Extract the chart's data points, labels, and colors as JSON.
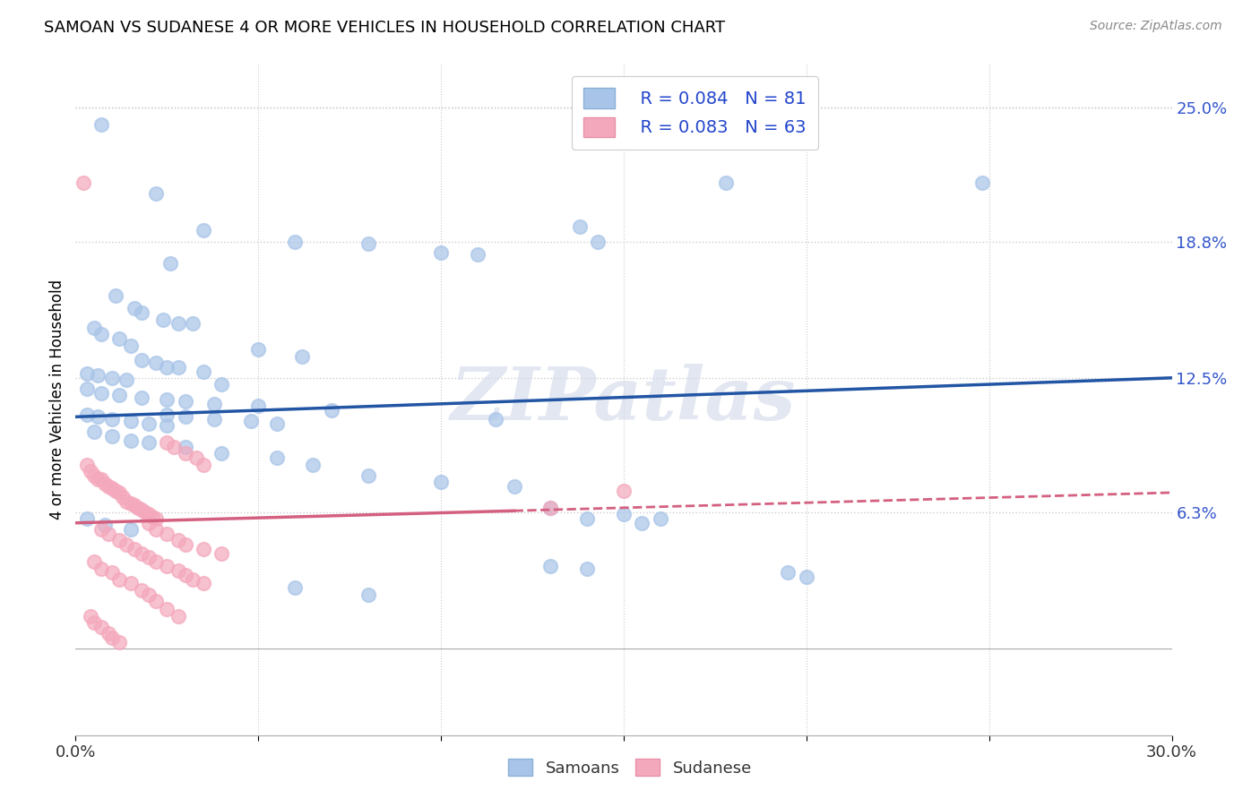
{
  "title": "SAMOAN VS SUDANESE 4 OR MORE VEHICLES IN HOUSEHOLD CORRELATION CHART",
  "source": "Source: ZipAtlas.com",
  "ylabel_ticks": [
    "6.3%",
    "12.5%",
    "18.8%",
    "25.0%"
  ],
  "ylabel_label": "4 or more Vehicles in Household",
  "samoan_color": "#a8c4e8",
  "sudanese_color": "#f4a8bc",
  "samoan_line_color": "#2255a4",
  "sudanese_line_color": "#d46080",
  "legend_r_color": "#2244cc",
  "samoan_R": "R = 0.084",
  "samoan_N": "N = 81",
  "sudanese_R": "R = 0.083",
  "sudanese_N": "N = 63",
  "x_min": 0.0,
  "x_max": 0.3,
  "y_min": -0.04,
  "y_max": 0.27,
  "y_axis_min": 0.0,
  "y_axis_max": 0.25,
  "watermark": "ZIPatlas",
  "samoan_points": [
    [
      0.007,
      0.242
    ],
    [
      0.022,
      0.21
    ],
    [
      0.026,
      0.178
    ],
    [
      0.035,
      0.193
    ],
    [
      0.178,
      0.215
    ],
    [
      0.248,
      0.215
    ],
    [
      0.138,
      0.195
    ],
    [
      0.143,
      0.188
    ],
    [
      0.06,
      0.188
    ],
    [
      0.08,
      0.187
    ],
    [
      0.1,
      0.183
    ],
    [
      0.11,
      0.182
    ],
    [
      0.011,
      0.163
    ],
    [
      0.016,
      0.157
    ],
    [
      0.018,
      0.155
    ],
    [
      0.024,
      0.152
    ],
    [
      0.028,
      0.15
    ],
    [
      0.032,
      0.15
    ],
    [
      0.005,
      0.148
    ],
    [
      0.007,
      0.145
    ],
    [
      0.012,
      0.143
    ],
    [
      0.015,
      0.14
    ],
    [
      0.05,
      0.138
    ],
    [
      0.062,
      0.135
    ],
    [
      0.018,
      0.133
    ],
    [
      0.022,
      0.132
    ],
    [
      0.025,
      0.13
    ],
    [
      0.028,
      0.13
    ],
    [
      0.035,
      0.128
    ],
    [
      0.003,
      0.127
    ],
    [
      0.006,
      0.126
    ],
    [
      0.01,
      0.125
    ],
    [
      0.014,
      0.124
    ],
    [
      0.04,
      0.122
    ],
    [
      0.003,
      0.12
    ],
    [
      0.007,
      0.118
    ],
    [
      0.012,
      0.117
    ],
    [
      0.018,
      0.116
    ],
    [
      0.025,
      0.115
    ],
    [
      0.03,
      0.114
    ],
    [
      0.038,
      0.113
    ],
    [
      0.05,
      0.112
    ],
    [
      0.07,
      0.11
    ],
    [
      0.003,
      0.108
    ],
    [
      0.006,
      0.107
    ],
    [
      0.01,
      0.106
    ],
    [
      0.015,
      0.105
    ],
    [
      0.02,
      0.104
    ],
    [
      0.025,
      0.103
    ],
    [
      0.005,
      0.1
    ],
    [
      0.01,
      0.098
    ],
    [
      0.015,
      0.096
    ],
    [
      0.025,
      0.108
    ],
    [
      0.03,
      0.107
    ],
    [
      0.038,
      0.106
    ],
    [
      0.048,
      0.105
    ],
    [
      0.055,
      0.104
    ],
    [
      0.115,
      0.106
    ],
    [
      0.13,
      0.065
    ],
    [
      0.15,
      0.062
    ],
    [
      0.16,
      0.06
    ],
    [
      0.02,
      0.095
    ],
    [
      0.03,
      0.093
    ],
    [
      0.04,
      0.09
    ],
    [
      0.055,
      0.088
    ],
    [
      0.065,
      0.085
    ],
    [
      0.08,
      0.08
    ],
    [
      0.1,
      0.077
    ],
    [
      0.12,
      0.075
    ],
    [
      0.003,
      0.06
    ],
    [
      0.008,
      0.057
    ],
    [
      0.015,
      0.055
    ],
    [
      0.14,
      0.06
    ],
    [
      0.155,
      0.058
    ],
    [
      0.13,
      0.038
    ],
    [
      0.14,
      0.037
    ],
    [
      0.195,
      0.035
    ],
    [
      0.2,
      0.033
    ],
    [
      0.06,
      0.028
    ],
    [
      0.08,
      0.025
    ]
  ],
  "sudanese_points": [
    [
      0.002,
      0.215
    ],
    [
      0.003,
      0.085
    ],
    [
      0.004,
      0.082
    ],
    [
      0.005,
      0.08
    ],
    [
      0.006,
      0.078
    ],
    [
      0.007,
      0.078
    ],
    [
      0.008,
      0.076
    ],
    [
      0.009,
      0.075
    ],
    [
      0.01,
      0.074
    ],
    [
      0.011,
      0.073
    ],
    [
      0.012,
      0.072
    ],
    [
      0.013,
      0.07
    ],
    [
      0.014,
      0.068
    ],
    [
      0.015,
      0.067
    ],
    [
      0.016,
      0.066
    ],
    [
      0.017,
      0.065
    ],
    [
      0.018,
      0.064
    ],
    [
      0.019,
      0.063
    ],
    [
      0.02,
      0.062
    ],
    [
      0.021,
      0.061
    ],
    [
      0.022,
      0.06
    ],
    [
      0.025,
      0.095
    ],
    [
      0.027,
      0.093
    ],
    [
      0.03,
      0.09
    ],
    [
      0.033,
      0.088
    ],
    [
      0.035,
      0.085
    ],
    [
      0.02,
      0.058
    ],
    [
      0.022,
      0.055
    ],
    [
      0.025,
      0.053
    ],
    [
      0.028,
      0.05
    ],
    [
      0.03,
      0.048
    ],
    [
      0.035,
      0.046
    ],
    [
      0.04,
      0.044
    ],
    [
      0.007,
      0.055
    ],
    [
      0.009,
      0.053
    ],
    [
      0.012,
      0.05
    ],
    [
      0.014,
      0.048
    ],
    [
      0.016,
      0.046
    ],
    [
      0.018,
      0.044
    ],
    [
      0.02,
      0.042
    ],
    [
      0.022,
      0.04
    ],
    [
      0.025,
      0.038
    ],
    [
      0.028,
      0.036
    ],
    [
      0.03,
      0.034
    ],
    [
      0.032,
      0.032
    ],
    [
      0.035,
      0.03
    ],
    [
      0.005,
      0.04
    ],
    [
      0.007,
      0.037
    ],
    [
      0.01,
      0.035
    ],
    [
      0.012,
      0.032
    ],
    [
      0.015,
      0.03
    ],
    [
      0.018,
      0.027
    ],
    [
      0.02,
      0.025
    ],
    [
      0.022,
      0.022
    ],
    [
      0.025,
      0.018
    ],
    [
      0.028,
      0.015
    ],
    [
      0.004,
      0.015
    ],
    [
      0.005,
      0.012
    ],
    [
      0.007,
      0.01
    ],
    [
      0.009,
      0.007
    ],
    [
      0.01,
      0.005
    ],
    [
      0.012,
      0.003
    ],
    [
      0.13,
      0.065
    ],
    [
      0.15,
      0.073
    ]
  ],
  "samoan_trend_x": [
    0.0,
    0.3
  ],
  "samoan_trend_y": [
    0.107,
    0.125
  ],
  "sudanese_trend_x": [
    0.0,
    0.3
  ],
  "sudanese_trend_y": [
    0.058,
    0.072
  ]
}
